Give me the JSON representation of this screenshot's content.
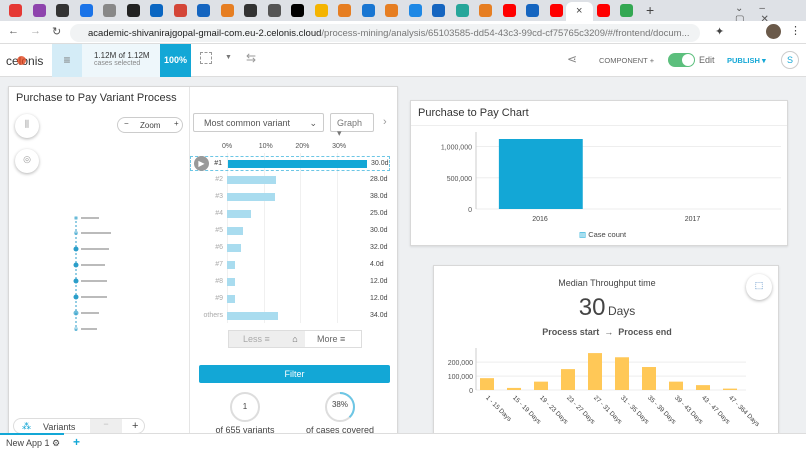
{
  "browser": {
    "tab_colors": [
      "#e53935",
      "#8e44ad",
      "#333",
      "#1a73e8",
      "#888",
      "#222",
      "#0a66c2",
      "#d44638",
      "#1565c0",
      "#e67e22",
      "#333",
      "#555",
      "#000",
      "#f4b400",
      "#e67e22",
      "#1976d2",
      "#e67e22",
      "#1e88e5",
      "#1565c0",
      "#26a69a",
      "#e67e22",
      "#ff0000",
      "#1565c0",
      "#ff0000",
      "#fff",
      "#ff0000",
      "#34a853"
    ],
    "url_host": "academic-shivanirajgopal-gmail-com.eu-2.celonis.cloud",
    "url_path": "/process-mining/analysis/65103585-dd54-43c3-99cd-cf75765c3209/#/frontend/docum...",
    "active_tab_close": "×",
    "new_tab": "+"
  },
  "header": {
    "logo": "celonis",
    "cases_count": "1.12M of 1.12M",
    "cases_label": "cases selected",
    "percent": "100%",
    "component_label": "COMPONENT",
    "edit_label": "Edit",
    "edit_on": true,
    "publish_label": "PUBLISH",
    "user_initial": "S",
    "accent": "#13a7d6"
  },
  "variants_panel": {
    "title": "Purchase to Pay Variant Process",
    "zoom_label": "Zoom",
    "dropdown": "Most common variant",
    "view_select": "Graph",
    "axis_ticks": [
      "0%",
      "10%",
      "20%",
      "30%"
    ],
    "rows": [
      {
        "label": "#1",
        "pct": 38,
        "duration": "30.0d",
        "selected": true
      },
      {
        "label": "#2",
        "pct": 13.4,
        "duration": "28.0d"
      },
      {
        "label": "#3",
        "pct": 13,
        "duration": "38.0d"
      },
      {
        "label": "#4",
        "pct": 6.5,
        "duration": "25.0d"
      },
      {
        "label": "#5",
        "pct": 4.4,
        "duration": "30.0d"
      },
      {
        "label": "#6",
        "pct": 3.9,
        "duration": "32.0d"
      },
      {
        "label": "#7",
        "pct": 2.2,
        "duration": "4.0d"
      },
      {
        "label": "#8",
        "pct": 2.2,
        "duration": "12.0d"
      },
      {
        "label": "#9",
        "pct": 2.2,
        "duration": "12.0d"
      },
      {
        "label": "others",
        "pct": 14,
        "duration": "34.0d"
      }
    ],
    "less_label": "Less",
    "more_label": "More",
    "filter_label": "Filter",
    "variant_count": "1",
    "variant_count_label": "of 655 variants",
    "coverage": "38%",
    "coverage_value": 38,
    "coverage_label": "of cases covered",
    "bottom_tab": "Variants"
  },
  "bar_chart": {
    "title": "Purchase to Pay Chart",
    "legend": "Case count",
    "chart_data": {
      "type": "bar",
      "categories": [
        "2016",
        "2017"
      ],
      "values": [
        1120000,
        0
      ],
      "yticks": [
        "0",
        "500,000",
        "1,000,000"
      ],
      "ylim": [
        0,
        1200000
      ],
      "series_name": "Case count",
      "color": "#13a7d6"
    }
  },
  "throughput": {
    "title": "Median Throughput time",
    "value": "30",
    "unit": "Days",
    "from": "Process start",
    "arrow": "→",
    "to": "Process end",
    "chart_data": {
      "type": "bar",
      "categories": [
        "1 - 15 Days",
        "15 - 19 Days",
        "19 - 23 Days",
        "23 - 27 Days",
        "27 - 31 Days",
        "31 - 35 Days",
        "35 - 39 Days",
        "39 - 43 Days",
        "43 - 47 Days",
        "47 - 364 Days"
      ],
      "values": [
        85000,
        15000,
        60000,
        150000,
        265000,
        235000,
        165000,
        60000,
        35000,
        10000
      ],
      "yticks": [
        "0",
        "100,000",
        "200,000"
      ],
      "ylim": [
        0,
        280000
      ],
      "color": "#ffc857"
    }
  },
  "app_bar": {
    "app_name": "New App 1",
    "add": "+"
  }
}
